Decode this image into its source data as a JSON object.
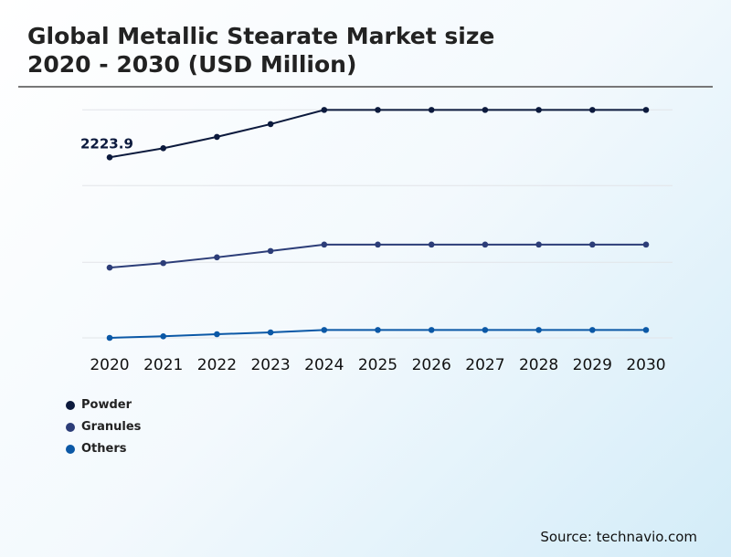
{
  "title_line1": "Global Metallic Stearate Market size",
  "title_line2": "2020 - 2030 (USD Million)",
  "source": "Source: technavio.com",
  "chart_data": {
    "type": "line",
    "title": "Global Metallic Stearate Market size 2020 - 2030 (USD Million)",
    "categories": [
      "2020",
      "2021",
      "2022",
      "2023",
      "2024",
      "2025",
      "2026",
      "2027",
      "2028",
      "2029",
      "2030"
    ],
    "grid": true,
    "legend_position": "bottom-left",
    "y_axis_labels_shown": false,
    "series": [
      {
        "name": "Powder",
        "color": "#0c1a3d",
        "values": [
          2223.9,
          2336,
          2476,
          2633,
          2808,
          2808,
          2808,
          2808,
          2808,
          2808,
          2808
        ],
        "data_label": "2223.9"
      },
      {
        "name": "Granules",
        "color": "#2c3d78",
        "values": [
          865,
          921,
          992,
          1070,
          1149,
          1149,
          1149,
          1149,
          1149,
          1149,
          1149
        ]
      },
      {
        "name": "Others",
        "color": "#0b58a6",
        "values": [
          0,
          19,
          45,
          67,
          97,
          97,
          97,
          97,
          97,
          97,
          97
        ]
      }
    ]
  }
}
